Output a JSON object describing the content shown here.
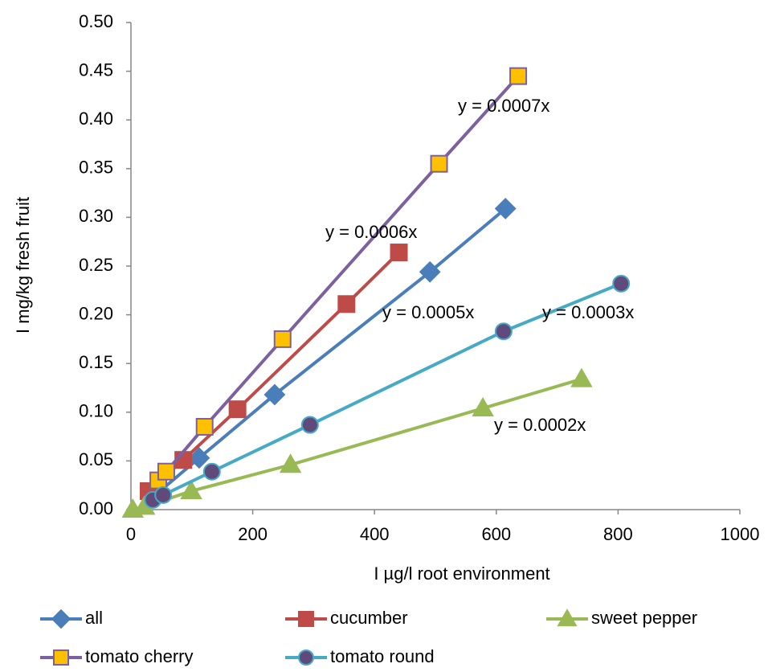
{
  "chart_data": {
    "type": "scatter",
    "x_label": "I  µg/l   root environment",
    "y_label": "I mg/kg    fresh fruit",
    "xlim": [
      0,
      1000
    ],
    "xticks": [
      0,
      200,
      400,
      600,
      800,
      1000
    ],
    "ylim": [
      0,
      0.5
    ],
    "yticks": [
      {
        "value": 0,
        "label": "0.00"
      },
      {
        "value": 0.05,
        "label": "0.05"
      },
      {
        "value": 0.1,
        "label": "0.10"
      },
      {
        "value": 0.15,
        "label": "0.15"
      },
      {
        "value": 0.2,
        "label": "0.20"
      },
      {
        "value": 0.25,
        "label": "0.25"
      },
      {
        "value": 0.3,
        "label": "0.30"
      },
      {
        "value": 0.35,
        "label": "0.35"
      },
      {
        "value": 0.4,
        "label": "0.40"
      },
      {
        "value": 0.45,
        "label": "0.45"
      },
      {
        "value": 0.5,
        "label": "0.50"
      }
    ],
    "series": [
      {
        "name": "all",
        "color": "#4a7ebb",
        "marker": "diamond",
        "marker_fill": "#4a7ebb",
        "x": [
          40,
          112,
          236,
          491,
          615
        ],
        "y": [
          0.015,
          0.053,
          0.118,
          0.244,
          0.309
        ]
      },
      {
        "name": "cucumber",
        "color": "#be4b48",
        "marker": "square",
        "marker_fill": "#be4b48",
        "x": [
          29,
          86,
          175,
          354,
          440
        ],
        "y": [
          0.019,
          0.051,
          0.103,
          0.211,
          0.264
        ]
      },
      {
        "name": "sweet pepper",
        "color": "#98b954",
        "marker": "triangle",
        "marker_fill": "#98b954",
        "x": [
          3,
          22,
          99,
          262,
          578,
          740
        ],
        "y": [
          0,
          0.003,
          0.019,
          0.046,
          0.104,
          0.134
        ]
      },
      {
        "name": "tomato cherry",
        "color": "#7d60a0",
        "marker": "square",
        "marker_fill": "#ffc000",
        "x": [
          45,
          58,
          121,
          249,
          506,
          636
        ],
        "y": [
          0.03,
          0.039,
          0.085,
          0.175,
          0.355,
          0.445
        ]
      },
      {
        "name": "tomato round",
        "color": "#46aac5",
        "marker": "circle",
        "marker_fill": "#604a7b",
        "x": [
          36,
          53,
          133,
          294,
          612,
          805
        ],
        "y": [
          0.01,
          0.015,
          0.039,
          0.087,
          0.183,
          0.232
        ]
      }
    ],
    "annotations": [
      "y = 0.0007x",
      "y = 0.0006x",
      "y = 0.0005x",
      "y = 0.0003x",
      "y = 0.0002x"
    ]
  }
}
